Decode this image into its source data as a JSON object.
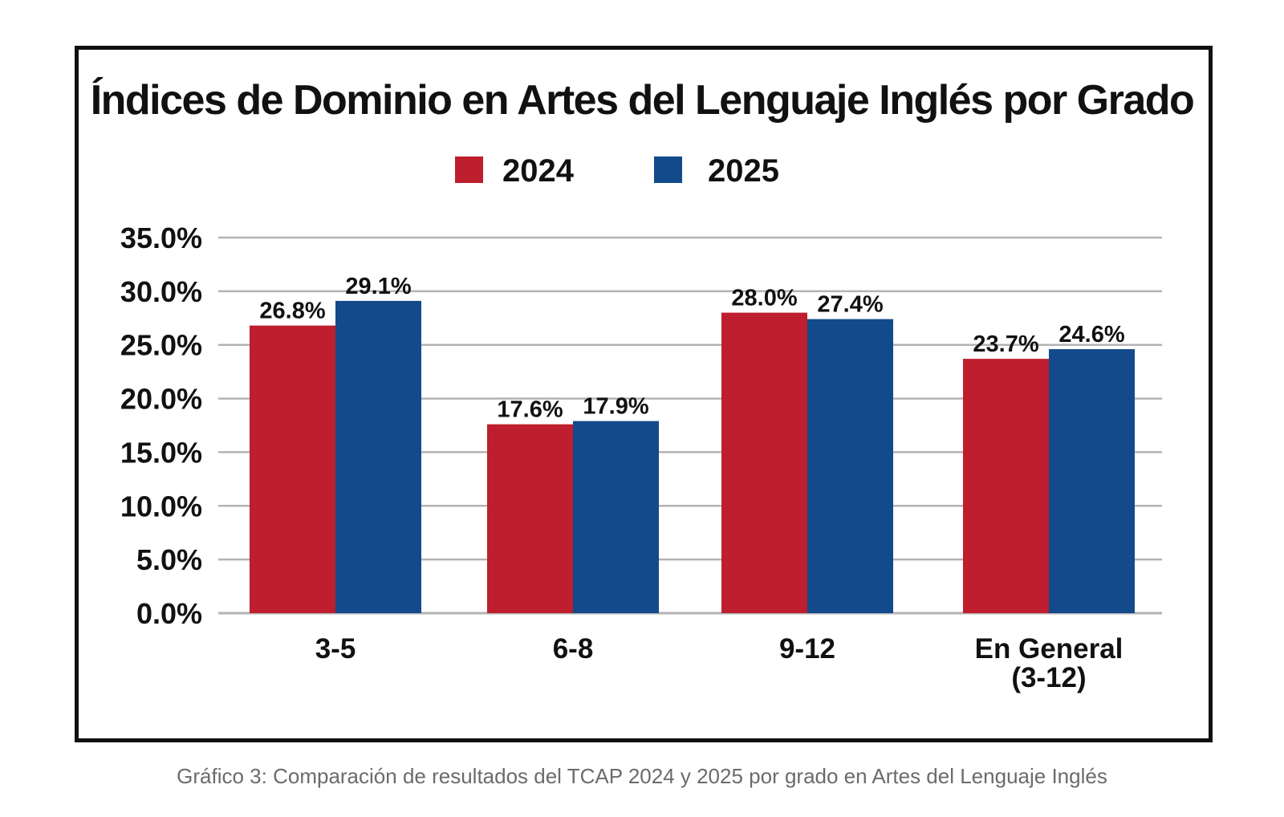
{
  "chart_data": {
    "type": "bar",
    "title": "Índices de Dominio en Artes del Lenguaje Inglés por Grado",
    "categories": [
      [
        "3-5"
      ],
      [
        "6-8"
      ],
      [
        "9-12"
      ],
      [
        "En General",
        "(3-12)"
      ]
    ],
    "series": [
      {
        "name": "2024",
        "color": "#be1e2d",
        "values": [
          26.8,
          17.6,
          28.0,
          23.7
        ],
        "labels": [
          "26.8%",
          "17.6%",
          "28.0%",
          "23.7%"
        ]
      },
      {
        "name": "2025",
        "color": "#124a8c",
        "values": [
          29.1,
          17.9,
          27.4,
          24.6
        ],
        "labels": [
          "29.1%",
          "17.9%",
          "27.4%",
          "24.6%"
        ]
      }
    ],
    "yticks": [
      "0.0%",
      "5.0%",
      "10.0%",
      "15.0%",
      "20.0%",
      "25.0%",
      "30.0%",
      "35.0%"
    ],
    "ylim": [
      0,
      35
    ],
    "xlabel": "",
    "ylabel": "",
    "grid": true,
    "legend_position": "top-center",
    "grid_color": "#b3b3b3",
    "text_color": "#111111"
  },
  "caption": "Gráfico 3: Comparación de resultados del TCAP 2024 y 2025 por grado en Artes del Lenguaje Inglés"
}
